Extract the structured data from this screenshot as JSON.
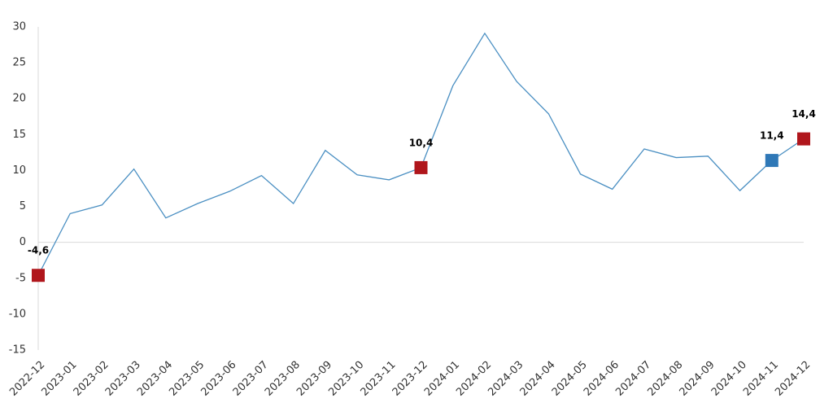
{
  "chart_data": {
    "type": "line",
    "categories": [
      "2022-12",
      "2023-01",
      "2023-02",
      "2023-03",
      "2023-04",
      "2023-05",
      "2023-06",
      "2023-07",
      "2023-08",
      "2023-09",
      "2023-10",
      "2023-11",
      "2023-12",
      "2024-01",
      "2024-02",
      "2024-03",
      "2024-04",
      "2024-05",
      "2024-06",
      "2024-07",
      "2024-08",
      "2024-09",
      "2024-10",
      "2024-11",
      "2024-12"
    ],
    "values": [
      -4.6,
      4.0,
      5.2,
      10.2,
      3.4,
      5.4,
      7.1,
      9.3,
      5.4,
      12.8,
      9.4,
      8.7,
      10.4,
      21.8,
      29.1,
      22.4,
      17.9,
      9.5,
      7.4,
      13.0,
      11.8,
      12.0,
      7.2,
      11.4,
      14.4
    ],
    "value_labels": [
      "-4,6",
      null,
      null,
      null,
      null,
      null,
      null,
      null,
      null,
      null,
      null,
      null,
      "10,4",
      null,
      null,
      null,
      null,
      null,
      null,
      null,
      null,
      null,
      null,
      "11,4",
      "14,4"
    ],
    "marker_colors": [
      "#b0161c",
      null,
      null,
      null,
      null,
      null,
      null,
      null,
      null,
      null,
      null,
      null,
      "#b0161c",
      null,
      null,
      null,
      null,
      null,
      null,
      null,
      null,
      null,
      null,
      "#2f78b7",
      "#b0161c"
    ],
    "color": "#4a8fc2",
    "ylim": [
      -15,
      30
    ],
    "yticks": [
      -15,
      -10,
      -5,
      0,
      5,
      10,
      15,
      20,
      25,
      30
    ],
    "grid": false
  }
}
